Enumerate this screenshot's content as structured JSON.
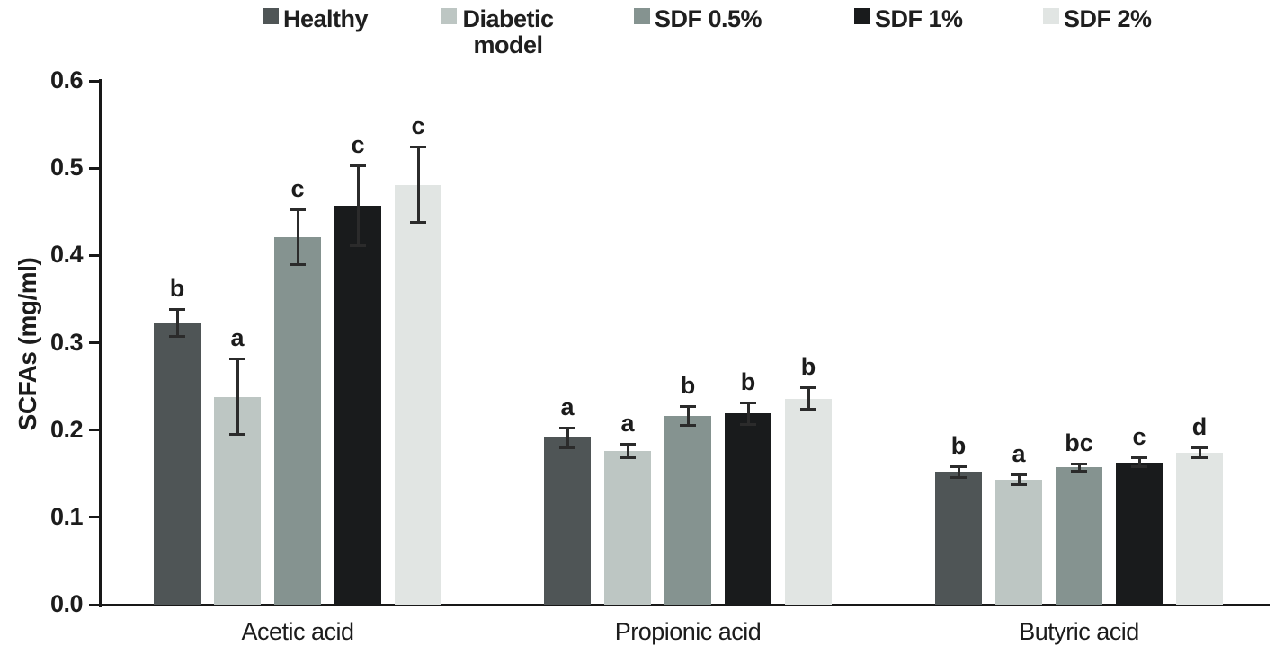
{
  "chart_data": {
    "type": "bar",
    "title": "",
    "xlabel": "",
    "ylabel": "SCFAs (mg/ml)",
    "ylim": [
      0,
      0.6
    ],
    "yticks": [
      0,
      0.1,
      0.2,
      0.3,
      0.4,
      0.5,
      0.6
    ],
    "grid": false,
    "legend_position": "top",
    "error_bars": true,
    "categories": [
      "Acetic acid",
      "Propionic acid",
      "Butyric acid"
    ],
    "series": [
      {
        "name": "Healthy",
        "color": "#4f5556",
        "values": [
          0.323,
          0.191,
          0.152
        ],
        "errors": [
          0.016,
          0.012,
          0.007
        ],
        "sig_letters": [
          "b",
          "a",
          "b"
        ]
      },
      {
        "name": "Diabetic model",
        "color": "#bdc6c3",
        "values": [
          0.238,
          0.176,
          0.143
        ],
        "errors": [
          0.044,
          0.008,
          0.006
        ],
        "sig_letters": [
          "a",
          "a",
          "a"
        ]
      },
      {
        "name": "SDF 0.5%",
        "color": "#859390",
        "values": [
          0.421,
          0.216,
          0.157
        ],
        "errors": [
          0.032,
          0.011,
          0.005
        ],
        "sig_letters": [
          "c",
          "b",
          "bc"
        ]
      },
      {
        "name": "SDF 1%",
        "color": "#191b1c",
        "values": [
          0.457,
          0.219,
          0.163
        ],
        "errors": [
          0.046,
          0.013,
          0.006
        ],
        "sig_letters": [
          "c",
          "b",
          "c"
        ]
      },
      {
        "name": "SDF 2%",
        "color": "#e1e5e3",
        "values": [
          0.481,
          0.236,
          0.174
        ],
        "errors": [
          0.044,
          0.013,
          0.006
        ],
        "sig_letters": [
          "c",
          "b",
          "d"
        ]
      }
    ],
    "axis_color": "#181818",
    "error_bar_color": "#2b2b2b"
  }
}
